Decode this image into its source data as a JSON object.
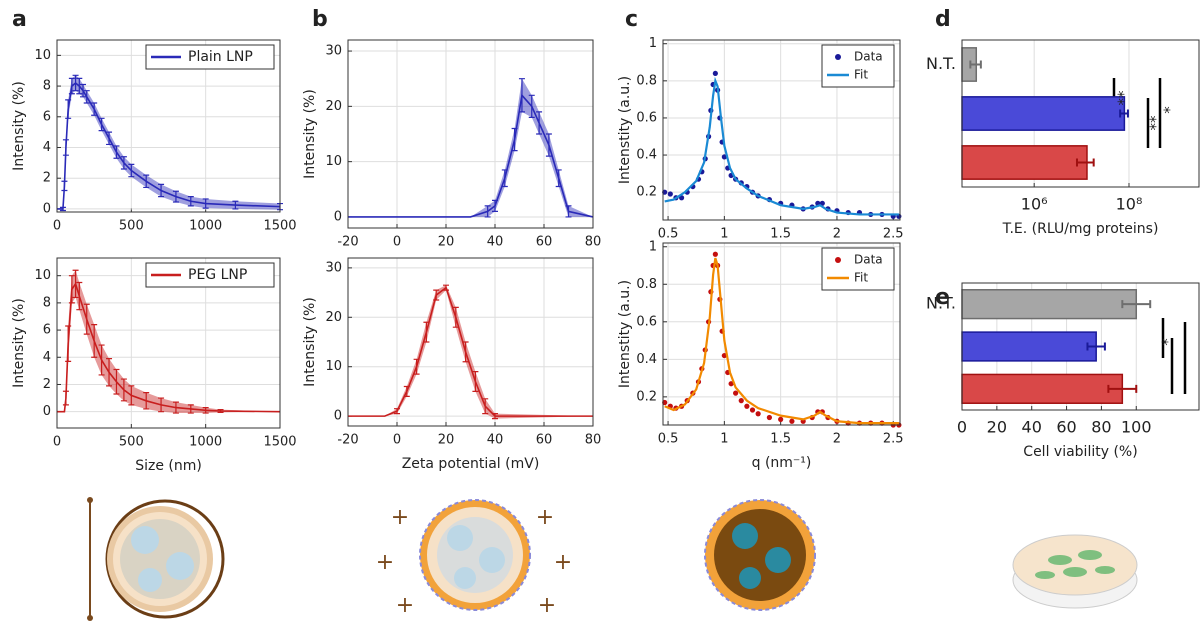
{
  "chart_data": [
    {
      "type": "line",
      "panel": "a",
      "ylabel": "Intensity (%)",
      "xlim": [
        0,
        1500
      ],
      "ylim": [
        -0.2,
        11
      ],
      "xticks": [
        0,
        500,
        1000,
        1500
      ],
      "yticks": [
        0,
        2,
        4,
        6,
        8,
        10
      ],
      "grid": true,
      "legend": "upper right",
      "series": [
        {
          "name": "Plain LNP",
          "color": "#2a2ab8",
          "x": [
            0,
            40,
            50,
            60,
            75,
            100,
            125,
            150,
            175,
            200,
            250,
            300,
            350,
            400,
            450,
            500,
            600,
            700,
            800,
            900,
            1000,
            1200,
            1500
          ],
          "values": [
            0,
            0,
            1.5,
            4,
            6.5,
            8,
            8.2,
            8,
            7.7,
            7.3,
            6.5,
            5.5,
            4.6,
            3.7,
            3,
            2.5,
            1.8,
            1.2,
            0.8,
            0.5,
            0.35,
            0.25,
            0.15
          ],
          "errors": [
            0,
            0.1,
            0.3,
            0.5,
            0.6,
            0.5,
            0.5,
            0.5,
            0.4,
            0.4,
            0.4,
            0.4,
            0.4,
            0.4,
            0.4,
            0.4,
            0.4,
            0.4,
            0.35,
            0.3,
            0.3,
            0.25,
            0.2
          ]
        }
      ]
    },
    {
      "type": "line",
      "xlabel": "Size (nm)",
      "ylabel": "Intensity (%)",
      "xlim": [
        0,
        1500
      ],
      "ylim": [
        -1.2,
        11.3
      ],
      "xticks": [
        0,
        500,
        1000,
        1500
      ],
      "yticks": [
        0,
        2,
        4,
        6,
        8,
        10
      ],
      "grid": true,
      "legend": "upper right",
      "series": [
        {
          "name": "PEG LNP",
          "color": "#c81e1e",
          "x": [
            0,
            50,
            60,
            75,
            100,
            125,
            150,
            200,
            250,
            300,
            350,
            400,
            450,
            500,
            600,
            700,
            800,
            900,
            1000,
            1100,
            1500
          ],
          "values": [
            0,
            0,
            1,
            5,
            9,
            9.4,
            8.5,
            6.8,
            5.2,
            3.8,
            2.9,
            2.2,
            1.6,
            1.2,
            0.8,
            0.5,
            0.3,
            0.2,
            0.1,
            0.05,
            0
          ],
          "errors": [
            0,
            0,
            0.5,
            1.3,
            1,
            1,
            1,
            1.1,
            1.2,
            1.1,
            1,
            0.9,
            0.8,
            0.7,
            0.6,
            0.5,
            0.4,
            0.3,
            0.2,
            0.1,
            0
          ]
        }
      ]
    },
    {
      "type": "line",
      "panel": "b",
      "ylabel": "Intensity (%)",
      "xlim": [
        -20,
        80
      ],
      "ylim": [
        -2,
        32
      ],
      "xticks": [
        -20,
        0,
        20,
        40,
        60,
        80
      ],
      "yticks": [
        0,
        10,
        20,
        30
      ],
      "grid": true,
      "series": [
        {
          "color": "#2a2ab8",
          "x": [
            -20,
            30,
            37,
            40,
            44,
            48,
            51,
            55,
            58,
            62,
            66,
            70,
            80
          ],
          "values": [
            0,
            0,
            1,
            2,
            7,
            14,
            22,
            20,
            17,
            13,
            7,
            1,
            0
          ],
          "errors": [
            0,
            0,
            1,
            1,
            1.5,
            2,
            3,
            2,
            2,
            2,
            1.5,
            1,
            0
          ]
        }
      ]
    },
    {
      "type": "line",
      "xlabel": "Zeta potential (mV)",
      "ylabel": "Intensity (%)",
      "xlim": [
        -20,
        80
      ],
      "ylim": [
        -2,
        32
      ],
      "xticks": [
        -20,
        0,
        20,
        40,
        60,
        80
      ],
      "yticks": [
        0,
        10,
        20,
        30
      ],
      "grid": true,
      "series": [
        {
          "color": "#c81e1e",
          "x": [
            -20,
            -5,
            0,
            4,
            8,
            12,
            16,
            20,
            24,
            28,
            32,
            36,
            40,
            80
          ],
          "values": [
            0,
            0,
            1,
            5,
            10,
            17,
            24.5,
            26,
            20,
            13,
            7,
            2,
            0,
            0
          ],
          "errors": [
            0,
            0,
            0.5,
            1,
            1.5,
            2,
            1,
            0.5,
            2,
            2,
            2,
            1.5,
            0.5,
            0
          ]
        }
      ]
    },
    {
      "type": "scatter",
      "panel": "c",
      "ylabel": "Intenstity (a.u.)",
      "xlim": [
        0.455,
        2.56
      ],
      "ylim": [
        0.05,
        1.02
      ],
      "xticks": [
        0.5,
        1,
        1.5,
        2,
        2.5
      ],
      "yticks": [
        0.2,
        0.4,
        0.6,
        0.8,
        1
      ],
      "grid": true,
      "legend": "upper right",
      "series": [
        {
          "name": "Data",
          "mode": "markers",
          "color": "#1a1a99",
          "x": [
            0.47,
            0.52,
            0.57,
            0.62,
            0.67,
            0.72,
            0.77,
            0.8,
            0.83,
            0.86,
            0.88,
            0.9,
            0.92,
            0.94,
            0.96,
            0.98,
            1.0,
            1.03,
            1.06,
            1.1,
            1.15,
            1.2,
            1.25,
            1.3,
            1.4,
            1.5,
            1.6,
            1.7,
            1.78,
            1.83,
            1.87,
            1.92,
            2.0,
            2.1,
            2.2,
            2.3,
            2.4,
            2.5,
            2.55
          ],
          "values": [
            0.2,
            0.19,
            0.17,
            0.17,
            0.2,
            0.23,
            0.27,
            0.31,
            0.38,
            0.5,
            0.64,
            0.78,
            0.84,
            0.75,
            0.6,
            0.47,
            0.39,
            0.33,
            0.29,
            0.27,
            0.25,
            0.23,
            0.2,
            0.18,
            0.16,
            0.14,
            0.13,
            0.11,
            0.12,
            0.14,
            0.14,
            0.11,
            0.1,
            0.09,
            0.09,
            0.08,
            0.08,
            0.07,
            0.07
          ]
        },
        {
          "name": "Fit",
          "mode": "line",
          "color": "#1a8ad4",
          "x": [
            0.47,
            0.55,
            0.65,
            0.75,
            0.82,
            0.87,
            0.9,
            0.92,
            0.94,
            0.97,
            1.0,
            1.05,
            1.1,
            1.2,
            1.3,
            1.5,
            1.7,
            1.8,
            1.85,
            1.9,
            2.0,
            2.2,
            2.55
          ],
          "values": [
            0.15,
            0.16,
            0.2,
            0.26,
            0.36,
            0.55,
            0.72,
            0.8,
            0.77,
            0.6,
            0.45,
            0.33,
            0.27,
            0.22,
            0.18,
            0.13,
            0.11,
            0.12,
            0.13,
            0.11,
            0.09,
            0.08,
            0.08
          ]
        }
      ]
    },
    {
      "type": "scatter",
      "xlabel": "q (nm⁻¹)",
      "ylabel": "Intenstity (a.u.)",
      "xlim": [
        0.455,
        2.56
      ],
      "ylim": [
        0.05,
        1.02
      ],
      "xticks": [
        0.5,
        1,
        1.5,
        2,
        2.5
      ],
      "yticks": [
        0.2,
        0.4,
        0.6,
        0.8,
        1
      ],
      "grid": true,
      "legend": "upper right",
      "series": [
        {
          "name": "Data",
          "mode": "markers",
          "color": "#c40f0f",
          "x": [
            0.47,
            0.52,
            0.57,
            0.62,
            0.67,
            0.72,
            0.77,
            0.8,
            0.83,
            0.86,
            0.88,
            0.9,
            0.92,
            0.94,
            0.96,
            0.98,
            1.0,
            1.03,
            1.06,
            1.1,
            1.15,
            1.2,
            1.25,
            1.3,
            1.4,
            1.5,
            1.6,
            1.7,
            1.78,
            1.83,
            1.87,
            1.92,
            2.0,
            2.1,
            2.2,
            2.3,
            2.4,
            2.5,
            2.55
          ],
          "values": [
            0.17,
            0.15,
            0.14,
            0.15,
            0.18,
            0.22,
            0.28,
            0.35,
            0.45,
            0.6,
            0.76,
            0.9,
            0.96,
            0.9,
            0.72,
            0.55,
            0.42,
            0.33,
            0.27,
            0.22,
            0.18,
            0.15,
            0.13,
            0.11,
            0.09,
            0.08,
            0.07,
            0.07,
            0.09,
            0.12,
            0.12,
            0.09,
            0.07,
            0.06,
            0.06,
            0.06,
            0.06,
            0.05,
            0.05
          ]
        },
        {
          "name": "Fit",
          "mode": "line",
          "color": "#f28a00",
          "x": [
            0.47,
            0.55,
            0.65,
            0.75,
            0.82,
            0.87,
            0.9,
            0.92,
            0.94,
            0.97,
            1.0,
            1.05,
            1.1,
            1.2,
            1.3,
            1.5,
            1.7,
            1.8,
            1.85,
            1.9,
            2.0,
            2.2,
            2.55
          ],
          "values": [
            0.15,
            0.13,
            0.16,
            0.24,
            0.38,
            0.62,
            0.85,
            0.94,
            0.9,
            0.7,
            0.5,
            0.33,
            0.25,
            0.18,
            0.14,
            0.1,
            0.08,
            0.1,
            0.12,
            0.1,
            0.07,
            0.06,
            0.06
          ]
        }
      ]
    },
    {
      "type": "bar",
      "panel": "d",
      "orientation": "horizontal",
      "xscale": "log",
      "xlabel": "T.E. (RLU/mg proteins)",
      "xlim": [
        30000,
        3000000000
      ],
      "xticks": [
        {
          "value": 1000000,
          "label": "10⁶"
        },
        {
          "value": 100000000,
          "label": "10⁸"
        }
      ],
      "grid": true,
      "categories": [
        "N.T.",
        null,
        null
      ],
      "values": [
        60000,
        80000000,
        13000000
      ],
      "errors": [
        15000,
        15000000,
        5000000
      ],
      "colors": [
        "#a6a6a6",
        "#4a4ad8",
        "#d94848"
      ],
      "edge_colors": [
        "#6e6e6e",
        "#1a1a99",
        "#a01010"
      ],
      "annotations": [
        "**",
        "**",
        "*"
      ]
    },
    {
      "type": "bar",
      "panel": "e",
      "orientation": "horizontal",
      "xlabel": "Cell viability (%)",
      "xlim": [
        0,
        136
      ],
      "xticks": [
        0,
        20,
        40,
        60,
        80,
        100
      ],
      "grid": true,
      "categories": [
        "N.T.",
        null,
        null
      ],
      "values": [
        100,
        77,
        92
      ],
      "errors": [
        8,
        5,
        8
      ],
      "colors": [
        "#a6a6a6",
        "#4a4ad8",
        "#d94848"
      ],
      "edge_colors": [
        "#6e6e6e",
        "#1a1a99",
        "#a01010"
      ],
      "annotations": [
        "*"
      ]
    }
  ]
}
